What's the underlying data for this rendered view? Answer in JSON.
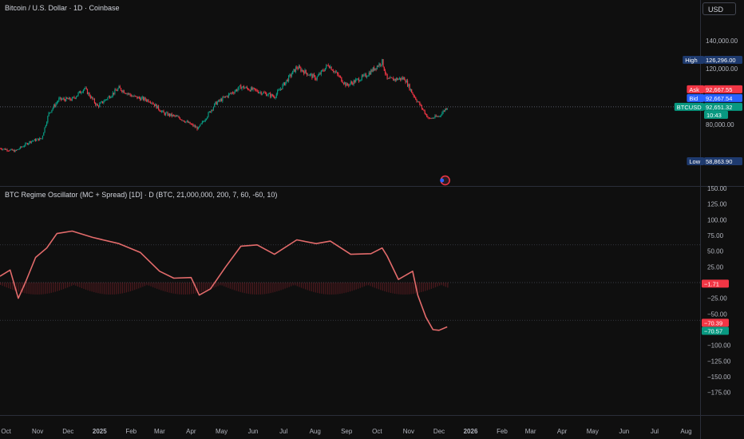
{
  "header": {
    "title": "Bitcoin / U.S. Dollar · 1D · Coinbase",
    "currency_button": "USD"
  },
  "indicator": {
    "title": "BTC Regime Oscillator (MC + Spread) [1D] · D (BTC, 21,000,000, 200, 7, 60, -60, 10)"
  },
  "colors": {
    "background": "#0f0f0f",
    "candle_up": "#089981",
    "candle_down": "#f23645",
    "oscillator_line": "#e36b6b",
    "bid": "#2962ff",
    "ask": "#f23645",
    "symbol_price": "#089981",
    "high_low": "#1e3a6e"
  },
  "chart_data": [
    {
      "type": "candlestick",
      "symbol": "BTCUSD",
      "timeframe": "1D",
      "y_scale_labels": [
        "140,000.00",
        "120,000.00",
        "80,000.00"
      ],
      "ylim": [
        50000,
        150000
      ],
      "x_ticks": [
        "Oct",
        "Nov",
        "Dec",
        "2025",
        "Feb",
        "Mar",
        "Apr",
        "May",
        "Jun",
        "Jul",
        "Aug",
        "Sep",
        "Oct",
        "Nov",
        "Dec",
        "2026",
        "Feb",
        "Mar",
        "Apr",
        "May",
        "Jun",
        "Jul",
        "Aug"
      ],
      "approx_close_path": [
        {
          "date": "2024-09-25",
          "close": 63000
        },
        {
          "date": "2024-10-10",
          "close": 61000
        },
        {
          "date": "2024-10-25",
          "close": 68000
        },
        {
          "date": "2024-11-05",
          "close": 70000
        },
        {
          "date": "2024-11-12",
          "close": 88000
        },
        {
          "date": "2024-11-22",
          "close": 98000
        },
        {
          "date": "2024-12-05",
          "close": 98000
        },
        {
          "date": "2024-12-17",
          "close": 106000
        },
        {
          "date": "2024-12-30",
          "close": 93000
        },
        {
          "date": "2025-01-20",
          "close": 106000
        },
        {
          "date": "2025-02-03",
          "close": 100000
        },
        {
          "date": "2025-02-20",
          "close": 97000
        },
        {
          "date": "2025-03-05",
          "close": 88000
        },
        {
          "date": "2025-03-20",
          "close": 85000
        },
        {
          "date": "2025-04-08",
          "close": 77000
        },
        {
          "date": "2025-04-25",
          "close": 95000
        },
        {
          "date": "2025-05-20",
          "close": 107000
        },
        {
          "date": "2025-06-05",
          "close": 104000
        },
        {
          "date": "2025-06-22",
          "close": 100000
        },
        {
          "date": "2025-07-14",
          "close": 121000
        },
        {
          "date": "2025-08-02",
          "close": 113000
        },
        {
          "date": "2025-08-14",
          "close": 123000
        },
        {
          "date": "2025-09-01",
          "close": 108000
        },
        {
          "date": "2025-09-20",
          "close": 115000
        },
        {
          "date": "2025-10-06",
          "close": 125000
        },
        {
          "date": "2025-10-11",
          "close": 112000
        },
        {
          "date": "2025-10-28",
          "close": 113000
        },
        {
          "date": "2025-11-05",
          "close": 102000
        },
        {
          "date": "2025-11-21",
          "close": 84000
        },
        {
          "date": "2025-12-01",
          "close": 86000
        },
        {
          "date": "2025-12-09",
          "close": 92651
        }
      ],
      "price_labels": {
        "high": {
          "label": "High",
          "value": "126,296.00"
        },
        "ask": {
          "label": "Ask",
          "value": "92,667.55"
        },
        "bid": {
          "label": "Bid",
          "value": "92,667.54"
        },
        "last": {
          "label": "BTCUSD",
          "value": "92,651.32",
          "countdown": "10:43"
        },
        "low": {
          "label": "Low",
          "value": "58,863.90"
        }
      }
    },
    {
      "type": "line",
      "name": "BTC Regime Oscillator (MC + Spread)",
      "y_scale_labels": [
        "150.00",
        "125.00",
        "100.00",
        "75.00",
        "50.00",
        "25.00",
        "−25.00",
        "−50.00",
        "−100.00",
        "−125.00",
        "−150.00",
        "−175.00"
      ],
      "ylim": [
        -180,
        150
      ],
      "levels": [
        60,
        0,
        -60
      ],
      "series": [
        {
          "date": "2024-09-25",
          "value": 10
        },
        {
          "date": "2024-10-05",
          "value": 20
        },
        {
          "date": "2024-10-13",
          "value": -25
        },
        {
          "date": "2024-10-20",
          "value": 0
        },
        {
          "date": "2024-10-30",
          "value": 40
        },
        {
          "date": "2024-11-10",
          "value": 55
        },
        {
          "date": "2024-11-20",
          "value": 78
        },
        {
          "date": "2024-12-05",
          "value": 82
        },
        {
          "date": "2024-12-25",
          "value": 72
        },
        {
          "date": "2025-01-20",
          "value": 62
        },
        {
          "date": "2025-02-10",
          "value": 48
        },
        {
          "date": "2025-03-01",
          "value": 18
        },
        {
          "date": "2025-03-15",
          "value": 7
        },
        {
          "date": "2025-04-01",
          "value": 8
        },
        {
          "date": "2025-04-09",
          "value": -20
        },
        {
          "date": "2025-04-20",
          "value": -10
        },
        {
          "date": "2025-05-05",
          "value": 25
        },
        {
          "date": "2025-05-20",
          "value": 58
        },
        {
          "date": "2025-06-05",
          "value": 60
        },
        {
          "date": "2025-06-22",
          "value": 45
        },
        {
          "date": "2025-07-14",
          "value": 68
        },
        {
          "date": "2025-08-02",
          "value": 62
        },
        {
          "date": "2025-08-16",
          "value": 66
        },
        {
          "date": "2025-09-05",
          "value": 45
        },
        {
          "date": "2025-09-25",
          "value": 46
        },
        {
          "date": "2025-10-06",
          "value": 55
        },
        {
          "date": "2025-10-11",
          "value": 42
        },
        {
          "date": "2025-10-22",
          "value": 5
        },
        {
          "date": "2025-11-05",
          "value": 18
        },
        {
          "date": "2025-11-10",
          "value": -20
        },
        {
          "date": "2025-11-18",
          "value": -55
        },
        {
          "date": "2025-11-25",
          "value": -75
        },
        {
          "date": "2025-12-01",
          "value": -76
        },
        {
          "date": "2025-12-09",
          "value": -70.5
        }
      ],
      "value_labels": [
        {
          "value": "−1.71",
          "color": "#f23645"
        },
        {
          "value": "−70.39",
          "color": "#f23645"
        },
        {
          "value": "−70.57",
          "color": "#089981"
        }
      ]
    }
  ]
}
